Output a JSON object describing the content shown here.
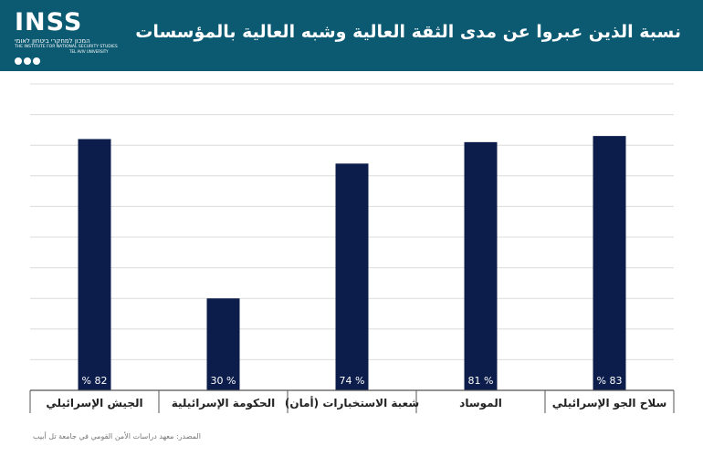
{
  "header": {
    "title": "نسبة الذين عبروا عن مدى الثقة العالية وشبه العالية بالمؤسسات",
    "logo": {
      "name": "INSS",
      "hebrew_name": "המכון למחקרי ביטחון לאומי",
      "english_name": "THE INSTITUTE FOR NATIONAL SECURITY STUDIES",
      "university": "TEL AVIV UNIVERSITY"
    },
    "background_color": "#0b5a72"
  },
  "chart_data": {
    "type": "bar",
    "categories": [
      "الجيش الإسرائيلي",
      "الحكومة الإسرائيلية",
      "شعبة الاستخبارات (أمان)",
      "الموساد",
      "سلاح الجو الإسرائيلي"
    ],
    "values": [
      82,
      30,
      74,
      81,
      83
    ],
    "value_labels": [
      "% 82",
      "30 %",
      "74 %",
      "81 %",
      "% 83"
    ],
    "ylim": [
      0,
      100
    ],
    "grid": true,
    "bar_color": "#0c1d4c",
    "title": "نسبة الذين عبروا عن مدى الثقة العالية وشبه العالية بالمؤسسات"
  },
  "footer": {
    "source": "المصدر: معهد دراسات الأمن القومي في جامعة تل أبيب"
  }
}
